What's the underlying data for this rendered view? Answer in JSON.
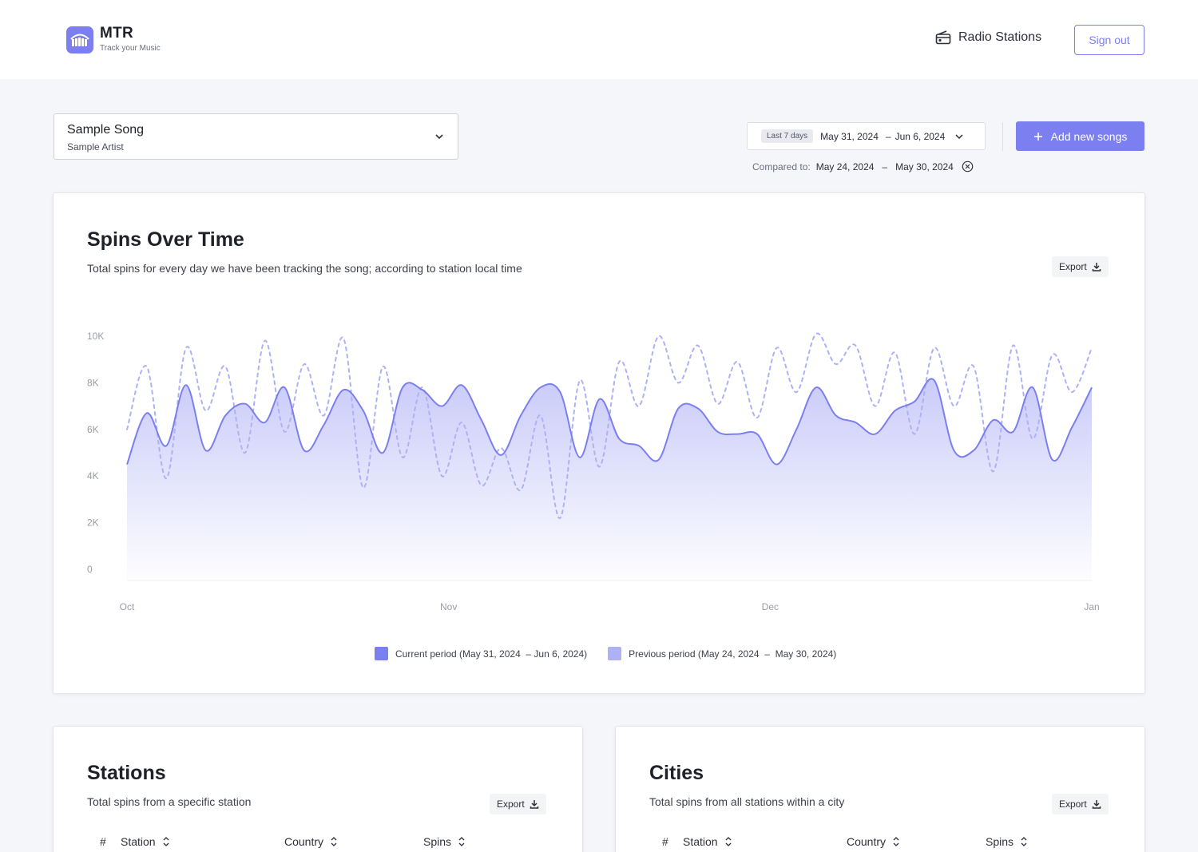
{
  "header": {
    "logo_title": "MTR",
    "logo_sub": "Track your Music",
    "nav_radio": "Radio Stations",
    "signout": "Sign out"
  },
  "song": {
    "title": "Sample Song",
    "artist": "Sample Artist"
  },
  "date_range": {
    "badge": "Last 7 days",
    "from": "May 31, 2024",
    "dash": "–",
    "to": "Jun 6, 2024",
    "compare_label": "Compared to:",
    "compare_from": "May 24, 2024",
    "compare_to": "May 30, 2024"
  },
  "add_button": "Add new songs",
  "spins_card": {
    "title": "Spins Over Time",
    "subtitle": "Total spins for every day we have been tracking the song; according to station local time",
    "export": "Export"
  },
  "legend": {
    "current": "Current period (May 31, 2024  – Jun 6, 2024)",
    "previous": "Previous period (May 24, 2024  –  May 30, 2024)"
  },
  "colors": {
    "accent": "#7b7ff0",
    "previous": "#aeb1f5"
  },
  "chart_data": {
    "type": "area",
    "y_ticks": [
      "10K",
      "8K",
      "6K",
      "4K",
      "2K",
      "0"
    ],
    "x_ticks": [
      "Oct",
      "Nov",
      "Dec",
      "Jan"
    ],
    "ylim": [
      0,
      10000
    ],
    "grid": false,
    "series": [
      {
        "name": "Current period (May 31, 2024  – Jun 6, 2024)",
        "style": "area",
        "values": [
          4500,
          6700,
          5300,
          7900,
          5100,
          6600,
          7100,
          6300,
          7800,
          5100,
          6200,
          7700,
          6800,
          5000,
          7800,
          7700,
          7000,
          7900,
          6400,
          4900,
          6600,
          7800,
          7600,
          4800,
          7300,
          5600,
          5300,
          4700,
          6900,
          6900,
          5900,
          5800,
          5800,
          4500,
          6000,
          7800,
          6600,
          6300,
          5800,
          6800,
          7200,
          8100,
          5100,
          5100,
          6400,
          5900,
          7800,
          4700,
          6100,
          7800
        ]
      },
      {
        "name": "Previous period (May 24, 2024  –  May 30, 2024)",
        "style": "dashed",
        "values": [
          6000,
          8700,
          3900,
          9500,
          6800,
          8700,
          5000,
          9800,
          5900,
          8800,
          6600,
          9900,
          3500,
          8700,
          4800,
          7800,
          4000,
          6300,
          3600,
          5200,
          3400,
          6600,
          2200,
          8100,
          4400,
          8900,
          7000,
          10000,
          8000,
          9600,
          7100,
          8900,
          6500,
          9500,
          7600,
          10100,
          8800,
          9600,
          7000,
          9300,
          5800,
          9500,
          7000,
          8700,
          4200,
          9600,
          5600,
          9200,
          7600,
          9500
        ]
      }
    ]
  },
  "stations_card": {
    "title": "Stations",
    "subtitle": "Total spins from a specific station",
    "export": "Export",
    "columns": [
      "#",
      "Station",
      "Country",
      "Spins"
    ]
  },
  "cities_card": {
    "title": "Cities",
    "subtitle": "Total spins from all stations within a city",
    "export": "Export",
    "columns": [
      "#",
      "Station",
      "Country",
      "Spins"
    ]
  }
}
